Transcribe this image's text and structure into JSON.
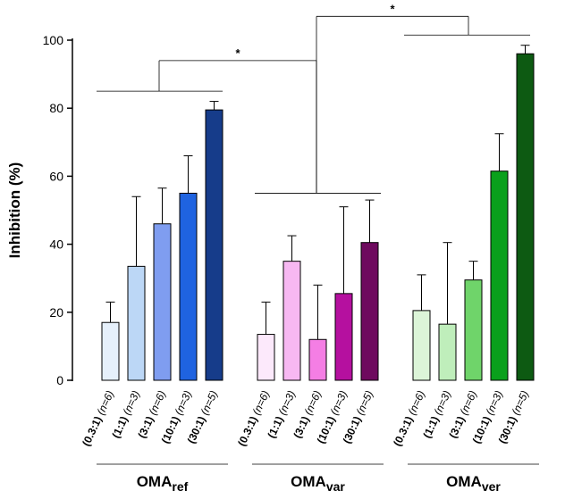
{
  "chart_data": {
    "type": "bar",
    "title": "",
    "ylabel": "Inhibition (%)",
    "ylim": [
      0,
      100
    ],
    "yticks": [
      0,
      20,
      40,
      60,
      80,
      100
    ],
    "grid": false,
    "groups": [
      {
        "name": "OMA",
        "sub": "ref",
        "bars": [
          {
            "ratio": "(0.3:1)",
            "n": "(n=6)",
            "value": 17,
            "error": 6,
            "color": "#e6f0fb"
          },
          {
            "ratio": "(1:1)",
            "n": "(n=3)",
            "value": 33.5,
            "error": 20.5,
            "color": "#bcd7f6"
          },
          {
            "ratio": "(3:1)",
            "n": "(n=6)",
            "value": 46,
            "error": 10.5,
            "color": "#7f9df0"
          },
          {
            "ratio": "(10:1)",
            "n": "(n=3)",
            "value": 55,
            "error": 11,
            "color": "#1f63e0"
          },
          {
            "ratio": "(30:1)",
            "n": "(n=5)",
            "value": 79.5,
            "error": 2.5,
            "color": "#163c8a"
          }
        ]
      },
      {
        "name": "OMA",
        "sub": "var",
        "bars": [
          {
            "ratio": "(0.3:1)",
            "n": "(n=6)",
            "value": 13.5,
            "error": 9.5,
            "color": "#fce9fb"
          },
          {
            "ratio": "(1:1)",
            "n": "(n=3)",
            "value": 35,
            "error": 7.5,
            "color": "#f7b8f2"
          },
          {
            "ratio": "(3:1)",
            "n": "(n=6)",
            "value": 12,
            "error": 16,
            "color": "#f47ee4"
          },
          {
            "ratio": "(10:1)",
            "n": "(n=3)",
            "value": 25.5,
            "error": 25.5,
            "color": "#b5109f"
          },
          {
            "ratio": "(30:1)",
            "n": "(n=5)",
            "value": 40.5,
            "error": 12.5,
            "color": "#6e0a5e"
          }
        ]
      },
      {
        "name": "OMA",
        "sub": "ver",
        "bars": [
          {
            "ratio": "(0.3:1)",
            "n": "(n=6)",
            "value": 20.5,
            "error": 10.5,
            "color": "#dcf5d8"
          },
          {
            "ratio": "(1:1)",
            "n": "(n=3)",
            "value": 16.5,
            "error": 24,
            "color": "#bfeebb"
          },
          {
            "ratio": "(3:1)",
            "n": "(n=6)",
            "value": 29.5,
            "error": 5.5,
            "color": "#6fd46a"
          },
          {
            "ratio": "(10:1)",
            "n": "(n=3)",
            "value": 61.5,
            "error": 11,
            "color": "#0aa01c"
          },
          {
            "ratio": "(30:1)",
            "n": "(n=5)",
            "value": 96,
            "error": 2.5,
            "color": "#0d5a12"
          }
        ]
      }
    ],
    "significance": [
      {
        "from_group": 0,
        "to_group": 1,
        "label": "*"
      },
      {
        "from_group": 1,
        "to_group": 2,
        "label": "*"
      }
    ]
  }
}
